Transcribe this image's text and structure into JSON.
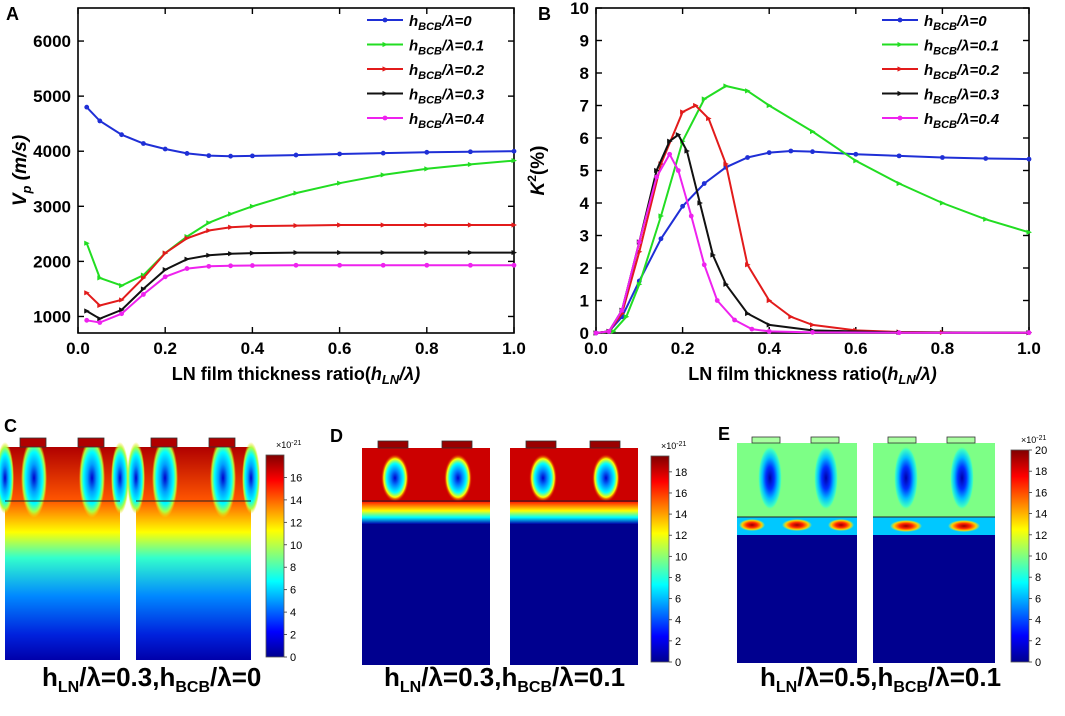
{
  "chart_data": [
    {
      "panel": "A",
      "type": "line",
      "title": "",
      "xlabel_prefix": "LN film thickness ratio",
      "xlabel_sym": "h",
      "xlabel_sub": "LN",
      "xlabel_tail": "/λ)",
      "ylabel_main": "V",
      "ylabel_sub": "p",
      "ylabel_unit": " (m/s)",
      "xlim": [
        0,
        1
      ],
      "ylim": [
        700,
        6600
      ],
      "xticks": [
        "0.0",
        "0.2",
        "0.4",
        "0.6",
        "0.8",
        "1.0"
      ],
      "xtick_values": [
        0,
        0.2,
        0.4,
        0.6,
        0.8,
        1.0
      ],
      "yticks": [
        "1000",
        "2000",
        "3000",
        "4000",
        "5000",
        "6000"
      ],
      "ytick_values": [
        1000,
        2000,
        3000,
        4000,
        5000,
        6000
      ],
      "x": [
        0.02,
        0.05,
        0.1,
        0.15,
        0.2,
        0.25,
        0.3,
        0.35,
        0.4,
        0.5,
        0.6,
        0.7,
        0.8,
        0.9,
        1.0
      ],
      "series": [
        {
          "name": "h",
          "sub": "BCB",
          "val": "/λ=0",
          "color": "#1f2fd6",
          "marker": "circle",
          "values": [
            4800,
            4550,
            4300,
            4140,
            4040,
            3960,
            3920,
            3910,
            3915,
            3930,
            3950,
            3965,
            3980,
            3990,
            4000
          ]
        },
        {
          "name": "h",
          "sub": "BCB",
          "val": "/λ=0.1",
          "color": "#22dd22",
          "marker": "tri",
          "values": [
            2330,
            1700,
            1560,
            1750,
            2150,
            2450,
            2700,
            2860,
            3000,
            3240,
            3420,
            3570,
            3680,
            3760,
            3830
          ]
        },
        {
          "name": "h",
          "sub": "BCB",
          "val": "/λ=0.2",
          "color": "#e21b1b",
          "marker": "tri",
          "values": [
            1430,
            1200,
            1300,
            1700,
            2150,
            2420,
            2560,
            2620,
            2640,
            2650,
            2660,
            2660,
            2660,
            2660,
            2660
          ]
        },
        {
          "name": "h",
          "sub": "BCB",
          "val": "/λ=0.3",
          "color": "#111111",
          "marker": "tri",
          "values": [
            1100,
            960,
            1120,
            1500,
            1850,
            2040,
            2110,
            2140,
            2150,
            2160,
            2160,
            2160,
            2160,
            2160,
            2160
          ]
        },
        {
          "name": "h",
          "sub": "BCB",
          "val": "/λ=0.4",
          "color": "#ee22ee",
          "marker": "circle",
          "values": [
            930,
            890,
            1050,
            1400,
            1720,
            1870,
            1910,
            1920,
            1925,
            1930,
            1930,
            1930,
            1930,
            1930,
            1930
          ]
        }
      ]
    },
    {
      "panel": "B",
      "type": "line",
      "title": "",
      "xlabel_prefix": "LN film thickness ratio",
      "xlabel_sym": "h",
      "xlabel_sub": "LN",
      "xlabel_tail": "/λ)",
      "ylabel_main": "K",
      "ylabel_sup": "2",
      "ylabel_unit": "(%)",
      "xlim": [
        0,
        1
      ],
      "ylim": [
        0,
        10
      ],
      "xticks": [
        "0.0",
        "0.2",
        "0.4",
        "0.6",
        "0.8",
        "1.0"
      ],
      "xtick_values": [
        0,
        0.2,
        0.4,
        0.6,
        0.8,
        1.0
      ],
      "yticks": [
        "0",
        "1",
        "2",
        "3",
        "4",
        "5",
        "6",
        "7",
        "8",
        "9",
        "10"
      ],
      "ytick_values": [
        0,
        1,
        2,
        3,
        4,
        5,
        6,
        7,
        8,
        9,
        10
      ],
      "series": [
        {
          "name": "h",
          "sub": "BCB",
          "val": "/λ=0",
          "color": "#1f2fd6",
          "marker": "circle",
          "x": [
            0,
            0.03,
            0.06,
            0.1,
            0.15,
            0.2,
            0.25,
            0.3,
            0.35,
            0.4,
            0.45,
            0.5,
            0.6,
            0.7,
            0.8,
            0.9,
            1.0
          ],
          "values": [
            0,
            0.05,
            0.5,
            1.6,
            2.9,
            3.9,
            4.6,
            5.1,
            5.4,
            5.55,
            5.6,
            5.58,
            5.5,
            5.45,
            5.4,
            5.37,
            5.35
          ]
        },
        {
          "name": "h",
          "sub": "BCB",
          "val": "/λ=0.1",
          "color": "#22dd22",
          "marker": "tri",
          "x": [
            0,
            0.04,
            0.07,
            0.1,
            0.15,
            0.2,
            0.25,
            0.3,
            0.35,
            0.4,
            0.5,
            0.6,
            0.7,
            0.8,
            0.9,
            1.0
          ],
          "values": [
            0,
            0.05,
            0.5,
            1.5,
            3.6,
            5.9,
            7.2,
            7.6,
            7.45,
            7.0,
            6.2,
            5.3,
            4.6,
            4.0,
            3.5,
            3.1
          ]
        },
        {
          "name": "h",
          "sub": "BCB",
          "val": "/λ=0.2",
          "color": "#e21b1b",
          "marker": "tri",
          "x": [
            0,
            0.03,
            0.06,
            0.1,
            0.15,
            0.2,
            0.23,
            0.26,
            0.3,
            0.35,
            0.4,
            0.45,
            0.5,
            0.6,
            0.7,
            0.8,
            1.0
          ],
          "values": [
            0,
            0.05,
            0.6,
            2.5,
            5.2,
            6.8,
            7.0,
            6.6,
            5.2,
            2.1,
            1.0,
            0.5,
            0.25,
            0.08,
            0.03,
            0.02,
            0.01
          ]
        },
        {
          "name": "h",
          "sub": "BCB",
          "val": "/λ=0.3",
          "color": "#111111",
          "marker": "tri",
          "x": [
            0,
            0.03,
            0.06,
            0.1,
            0.14,
            0.17,
            0.19,
            0.21,
            0.24,
            0.27,
            0.3,
            0.35,
            0.4,
            0.5,
            0.7,
            1.0
          ],
          "values": [
            0,
            0.05,
            0.7,
            2.8,
            5.0,
            5.9,
            6.1,
            5.6,
            4.0,
            2.4,
            1.5,
            0.6,
            0.25,
            0.08,
            0.02,
            0.01
          ]
        },
        {
          "name": "h",
          "sub": "BCB",
          "val": "/λ=0.4",
          "color": "#ee22ee",
          "marker": "circle",
          "x": [
            0,
            0.03,
            0.06,
            0.1,
            0.14,
            0.17,
            0.19,
            0.22,
            0.25,
            0.28,
            0.32,
            0.36,
            0.4,
            0.5,
            0.7,
            1.0
          ],
          "values": [
            0,
            0.05,
            0.7,
            2.8,
            4.8,
            5.5,
            5.0,
            3.6,
            2.1,
            1.0,
            0.4,
            0.12,
            0.05,
            0.02,
            0.01,
            0.01
          ]
        }
      ]
    }
  ],
  "panel_labels": {
    "A": "A",
    "B": "B",
    "C": "C",
    "D": "D",
    "E": "E"
  },
  "fields": [
    {
      "panel": "C",
      "colorbar_exp": "×10",
      "colorbar_exp_sup": "-21",
      "cbar_max": 18,
      "cbar_ticks": [
        "0",
        "2",
        "4",
        "6",
        "8",
        "10",
        "12",
        "14",
        "16"
      ],
      "cbar_tick_values": [
        0,
        2,
        4,
        6,
        8,
        10,
        12,
        14,
        16
      ]
    },
    {
      "panel": "D",
      "colorbar_exp": "×10",
      "colorbar_exp_sup": "-21",
      "cbar_max": 19.5,
      "cbar_ticks": [
        "0",
        "2",
        "4",
        "6",
        "8",
        "10",
        "12",
        "14",
        "16",
        "18"
      ],
      "cbar_tick_values": [
        0,
        2,
        4,
        6,
        8,
        10,
        12,
        14,
        16,
        18
      ]
    },
    {
      "panel": "E",
      "colorbar_exp": "×10",
      "colorbar_exp_sup": "-21",
      "cbar_max": 20,
      "cbar_ticks": [
        "0",
        "2",
        "4",
        "6",
        "8",
        "10",
        "12",
        "14",
        "16",
        "18",
        "20"
      ],
      "cbar_tick_values": [
        0,
        2,
        4,
        6,
        8,
        10,
        12,
        14,
        16,
        18,
        20
      ]
    }
  ],
  "captions": {
    "C": {
      "a": "h",
      "a_sub": "LN",
      "b": "/λ=0.3,h",
      "b_sub": "BCB",
      "c": "/λ=0"
    },
    "D": {
      "a": "h",
      "a_sub": "LN",
      "b": "/λ=0.3,h",
      "b_sub": "BCB",
      "c": "/λ=0.1"
    },
    "E": {
      "a": "h",
      "a_sub": "LN",
      "b": "/λ=0.5,h",
      "b_sub": "BCB",
      "c": "/λ=0.1"
    }
  }
}
